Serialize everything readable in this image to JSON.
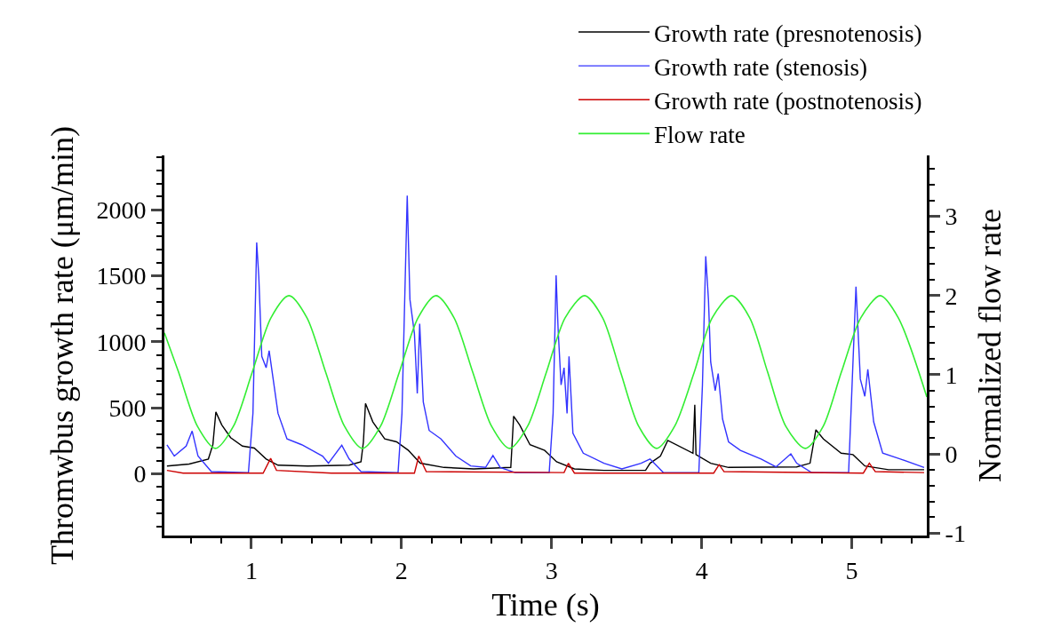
{
  "chart_data": {
    "type": "line",
    "xlabel": "Time (s)",
    "ylabel": "Thromwbus growth rate (μm/min)",
    "y2label": "Normalized flow rate",
    "xlim": [
      0.42,
      5.5
    ],
    "ylim": [
      -468,
      2412
    ],
    "y2lim": [
      -1.03,
      3.77
    ],
    "xticks": [
      {
        "value": 0.6,
        "label": null
      },
      {
        "value": 0.8,
        "label": null
      },
      1,
      {
        "value": 1.2,
        "label": null
      },
      {
        "value": 1.4,
        "label": null
      },
      {
        "value": 1.6,
        "label": null
      },
      {
        "value": 1.8,
        "label": null
      },
      2,
      {
        "value": 2.2,
        "label": null
      },
      {
        "value": 2.4,
        "label": null
      },
      {
        "value": 2.6,
        "label": null
      },
      {
        "value": 2.8,
        "label": null
      },
      3,
      {
        "value": 3.2,
        "label": null
      },
      {
        "value": 3.4,
        "label": null
      },
      {
        "value": 3.6,
        "label": null
      },
      {
        "value": 3.8,
        "label": null
      },
      4,
      {
        "value": 4.2,
        "label": null
      },
      {
        "value": 4.4,
        "label": null
      },
      {
        "value": 4.6,
        "label": null
      },
      {
        "value": 4.8,
        "label": null
      },
      5,
      {
        "value": 5.2,
        "label": null
      },
      {
        "value": 5.4,
        "label": null
      }
    ],
    "yticks": [
      {
        "value": -400,
        "label": null
      },
      {
        "value": -300,
        "label": null
      },
      {
        "value": -200,
        "label": null
      },
      {
        "value": -100,
        "label": null
      },
      0,
      {
        "value": 100,
        "label": null
      },
      {
        "value": 200,
        "label": null
      },
      {
        "value": 300,
        "label": null
      },
      {
        "value": 400,
        "label": null
      },
      500,
      {
        "value": 600,
        "label": null
      },
      {
        "value": 700,
        "label": null
      },
      {
        "value": 800,
        "label": null
      },
      {
        "value": 900,
        "label": null
      },
      1000,
      {
        "value": 1100,
        "label": null
      },
      {
        "value": 1200,
        "label": null
      },
      {
        "value": 1300,
        "label": null
      },
      {
        "value": 1400,
        "label": null
      },
      1500,
      {
        "value": 1600,
        "label": null
      },
      {
        "value": 1700,
        "label": null
      },
      {
        "value": 1800,
        "label": null
      },
      {
        "value": 1900,
        "label": null
      },
      2000,
      {
        "value": 2100,
        "label": null
      },
      {
        "value": 2200,
        "label": null
      },
      {
        "value": 2300,
        "label": null
      },
      {
        "value": 2400,
        "label": null
      }
    ],
    "y2ticks": [
      -1,
      {
        "value": -0.8,
        "label": null
      },
      {
        "value": -0.6,
        "label": null
      },
      {
        "value": -0.4,
        "label": null
      },
      {
        "value": -0.2,
        "label": null
      },
      0,
      {
        "value": 0.2,
        "label": null
      },
      {
        "value": 0.4,
        "label": null
      },
      {
        "value": 0.6,
        "label": null
      },
      {
        "value": 0.8,
        "label": null
      },
      1,
      {
        "value": 1.2,
        "label": null
      },
      {
        "value": 1.4,
        "label": null
      },
      {
        "value": 1.6,
        "label": null
      },
      {
        "value": 1.8,
        "label": null
      },
      2,
      {
        "value": 2.2,
        "label": null
      },
      {
        "value": 2.4,
        "label": null
      },
      {
        "value": 2.6,
        "label": null
      },
      {
        "value": 2.8,
        "label": null
      },
      3,
      {
        "value": 3.2,
        "label": null
      },
      {
        "value": 3.4,
        "label": null
      },
      {
        "value": 3.6,
        "label": null
      }
    ],
    "legend": "top right",
    "marker": "none",
    "line_style": "solid",
    "series": [
      {
        "name": "Growth rate (presnotenosis)",
        "color": "#000000",
        "x": [
          0.437,
          0.585,
          0.713,
          0.743,
          0.763,
          0.802,
          0.861,
          0.94,
          1.019,
          1.098,
          1.177,
          1.375,
          1.651,
          1.73,
          1.746,
          1.76,
          1.809,
          1.888,
          1.967,
          2.046,
          2.125,
          2.283,
          2.481,
          2.728,
          2.747,
          2.787,
          2.856,
          2.954,
          3.033,
          3.152,
          3.349,
          3.626,
          3.656,
          3.725,
          3.774,
          3.942,
          3.954,
          3.962,
          4.06,
          4.179,
          4.633,
          4.722,
          4.761,
          4.811,
          4.929,
          5.008,
          5.087,
          5.245,
          5.482
        ],
        "values": [
          59,
          74,
          112,
          220,
          468,
          371,
          274,
          210,
          195,
          112,
          65,
          59,
          65,
          91,
          242,
          533,
          393,
          264,
          242,
          177,
          80,
          48,
          37,
          48,
          436,
          371,
          220,
          177,
          91,
          37,
          26,
          26,
          80,
          134,
          253,
          156,
          522,
          145,
          80,
          48,
          52,
          80,
          333,
          264,
          156,
          145,
          59,
          31,
          31
        ]
      },
      {
        "name": "Growth rate (stenosis)",
        "color": "#3333ff",
        "x": [
          0.437,
          0.486,
          0.565,
          0.605,
          0.644,
          0.733,
          0.98,
          1.01,
          1.035,
          1.049,
          1.069,
          1.098,
          1.118,
          1.177,
          1.237,
          1.335,
          1.474,
          1.513,
          1.602,
          1.651,
          1.73,
          1.977,
          2.003,
          2.038,
          2.056,
          2.086,
          2.105,
          2.121,
          2.145,
          2.184,
          2.263,
          2.362,
          2.461,
          2.56,
          2.609,
          2.658,
          2.757,
          2.984,
          3.01,
          3.03,
          3.043,
          3.063,
          3.083,
          3.103,
          3.116,
          3.142,
          3.211,
          3.349,
          3.468,
          3.596,
          3.656,
          3.744,
          3.981,
          4.005,
          4.027,
          4.045,
          4.06,
          4.09,
          4.11,
          4.139,
          4.179,
          4.258,
          4.396,
          4.495,
          4.594,
          4.633,
          4.732,
          4.979,
          5.002,
          5.028,
          5.057,
          5.087,
          5.107,
          5.146,
          5.206,
          5.324,
          5.482
        ],
        "values": [
          220,
          134,
          210,
          324,
          134,
          16,
          9,
          458,
          1752,
          1493,
          889,
          803,
          932,
          458,
          264,
          220,
          134,
          80,
          216,
          112,
          16,
          9,
          458,
          2108,
          1321,
          1062,
          609,
          1137,
          544,
          328,
          264,
          134,
          59,
          48,
          138,
          48,
          9,
          9,
          458,
          1504,
          1105,
          673,
          803,
          458,
          889,
          307,
          156,
          80,
          37,
          80,
          112,
          9,
          9,
          673,
          1648,
          1321,
          846,
          630,
          760,
          415,
          242,
          177,
          112,
          52,
          151,
          80,
          9,
          9,
          673,
          1418,
          717,
          587,
          792,
          393,
          156,
          112,
          48
        ]
      },
      {
        "name": "Growth rate (postnotenosis)",
        "color": "#cc0000",
        "x": [
          0.437,
          0.545,
          1.078,
          1.128,
          1.167,
          1.533,
          2.086,
          2.115,
          2.165,
          3.083,
          3.112,
          3.152,
          4.08,
          4.116,
          4.149,
          5.077,
          5.117,
          5.157,
          5.482
        ],
        "values": [
          26,
          5,
          5,
          117,
          26,
          5,
          5,
          134,
          16,
          9,
          80,
          5,
          5,
          69,
          16,
          5,
          80,
          16,
          9
        ]
      },
      {
        "name": "Flow rate",
        "color": "#33ee33",
        "axis": "y2",
        "x": [
          0.42,
          0.515,
          0.64,
          0.76,
          0.88,
          1.005,
          1.13,
          1.25,
          1.37,
          1.495,
          1.62,
          1.74,
          1.86,
          1.985,
          2.11,
          2.23,
          2.35,
          2.475,
          2.6,
          2.72,
          2.84,
          2.965,
          3.09,
          3.22,
          3.34,
          3.46,
          3.58,
          3.7,
          3.82,
          3.95,
          4.07,
          4.2,
          4.32,
          4.44,
          4.56,
          4.69,
          4.81,
          4.93,
          5.06,
          5.19,
          5.31,
          5.5
        ],
        "values": [
          1.53,
          1.03,
          0.35,
          0.07,
          0.35,
          1.03,
          1.72,
          2.0,
          1.72,
          1.03,
          0.35,
          0.07,
          0.35,
          1.03,
          1.72,
          2.0,
          1.72,
          1.03,
          0.35,
          0.07,
          0.35,
          1.03,
          1.72,
          2.0,
          1.72,
          1.03,
          0.35,
          0.07,
          0.35,
          1.03,
          1.72,
          2.0,
          1.72,
          1.03,
          0.35,
          0.07,
          0.35,
          1.03,
          1.72,
          2.0,
          1.72,
          0.72
        ]
      }
    ]
  }
}
